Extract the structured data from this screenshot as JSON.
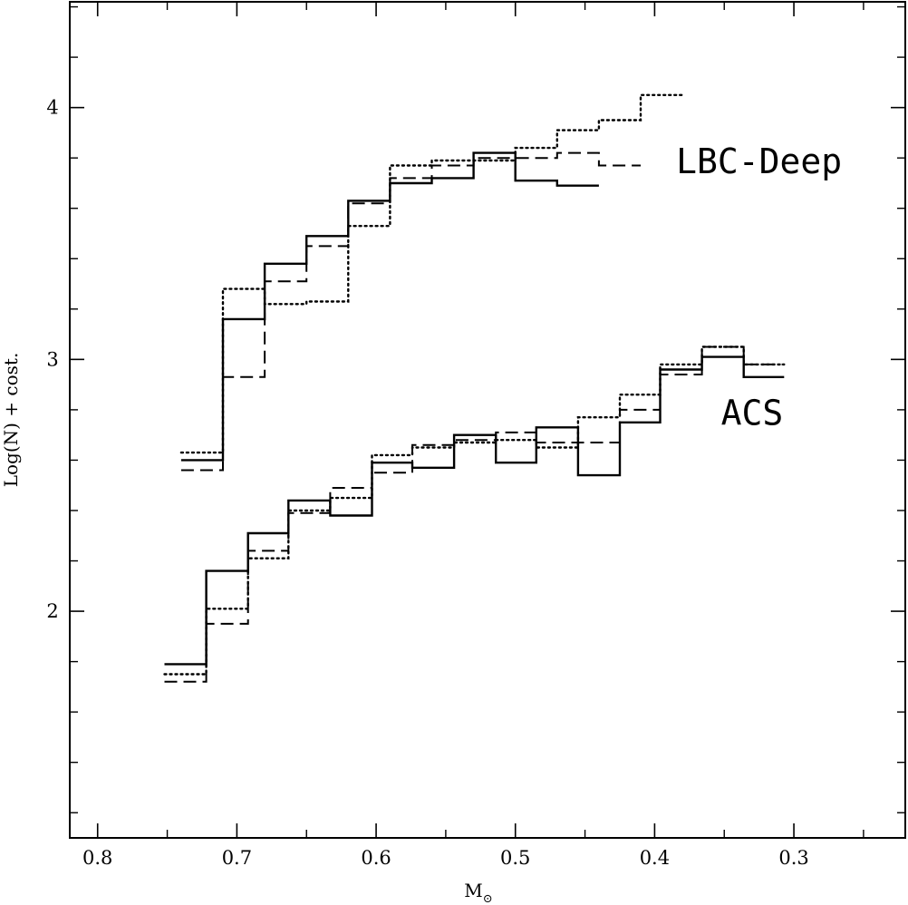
{
  "chart_data": {
    "type": "line",
    "drawstyle": "steps",
    "xlabel_main": "M",
    "xlabel_sub": "⊙",
    "ylabel": "Log(N) + cost.",
    "xlim": [
      0.82,
      0.22
    ],
    "ylim": [
      1.1,
      4.42
    ],
    "xticks_major": [
      0.8,
      0.7,
      0.6,
      0.5,
      0.4,
      0.3
    ],
    "xticks_minor": [
      0.75,
      0.65,
      0.55,
      0.45,
      0.35,
      0.25
    ],
    "xtick_labels": [
      "0.8",
      "0.7",
      "0.6",
      "0.5",
      "0.4",
      "0.3"
    ],
    "yticks_major": [
      2,
      3,
      4
    ],
    "yticks_minor": [
      1.2,
      1.4,
      1.6,
      1.8,
      2.2,
      2.4,
      2.6,
      2.8,
      3.2,
      3.4,
      3.6,
      3.8,
      4.2,
      4.4
    ],
    "ytick_labels": [
      "2",
      "3",
      "4"
    ],
    "grid": false,
    "annotations": [
      {
        "text": "LBC-Deep",
        "x": 0.325,
        "y": 3.74
      },
      {
        "text": "ACS",
        "x": 0.33,
        "y": 2.74
      }
    ],
    "groups": [
      {
        "label": "LBC-Deep",
        "edges": [
          0.74,
          0.71,
          0.68,
          0.65,
          0.62,
          0.59,
          0.56,
          0.53,
          0.5,
          0.47,
          0.44,
          0.41,
          0.38
        ],
        "series": [
          {
            "style": "solid",
            "values": [
              2.6,
              3.16,
              3.38,
              3.49,
              3.63,
              3.7,
              3.72,
              3.82,
              3.71,
              3.69
            ]
          },
          {
            "style": "dashed",
            "values": [
              2.56,
              2.93,
              3.31,
              3.45,
              3.62,
              3.72,
              3.77,
              3.8,
              3.8,
              3.82,
              3.77
            ]
          },
          {
            "style": "dotted",
            "values": [
              2.63,
              3.28,
              3.22,
              3.23,
              3.53,
              3.77,
              3.79,
              3.79,
              3.84,
              3.91,
              3.95,
              4.05
            ]
          }
        ]
      },
      {
        "label": "ACS",
        "edges": [
          0.752,
          0.722,
          0.692,
          0.663,
          0.633,
          0.603,
          0.574,
          0.544,
          0.514,
          0.485,
          0.455,
          0.425,
          0.396,
          0.366,
          0.336,
          0.307
        ],
        "series": [
          {
            "style": "solid",
            "values": [
              1.79,
              2.16,
              2.31,
              2.44,
              2.38,
              2.59,
              2.57,
              2.7,
              2.59,
              2.73,
              2.54,
              2.75,
              2.96,
              3.01,
              2.93
            ]
          },
          {
            "style": "dashed",
            "values": [
              1.72,
              1.95,
              2.24,
              2.39,
              2.49,
              2.55,
              2.66,
              2.68,
              2.71,
              2.67,
              2.67,
              2.8,
              2.94,
              3.05,
              2.98
            ]
          },
          {
            "style": "dotted",
            "values": [
              1.75,
              2.01,
              2.21,
              2.4,
              2.45,
              2.62,
              2.65,
              2.67,
              2.68,
              2.65,
              2.77,
              2.86,
              2.98,
              3.05,
              2.98
            ]
          }
        ]
      }
    ]
  }
}
